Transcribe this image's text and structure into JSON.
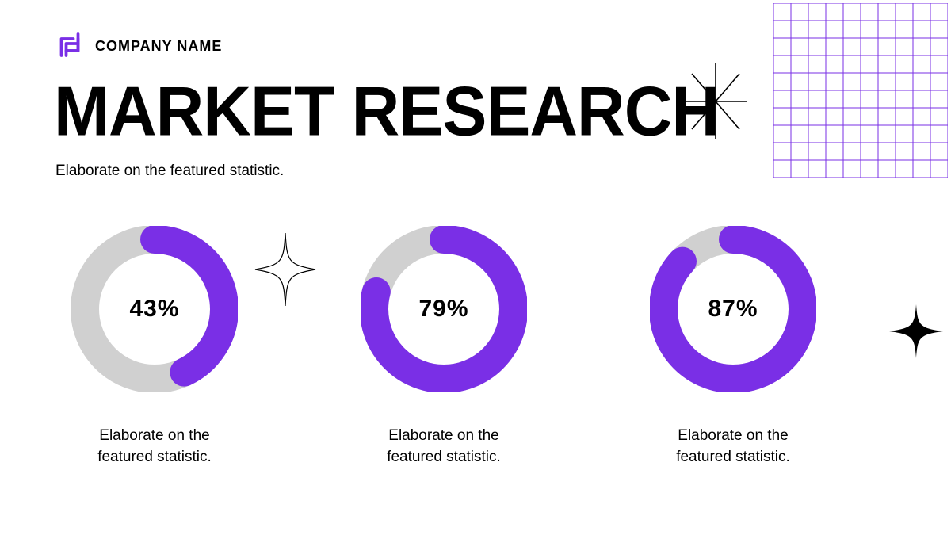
{
  "header": {
    "company_name": "COMPANY NAME",
    "logo_color": "#7a2fe6"
  },
  "title": "MARKET RESEARCH",
  "subtitle": "Elaborate on the featured statistic.",
  "grid": {
    "color": "#7a2fe6",
    "cols": 10,
    "rows": 10,
    "cell": 22
  },
  "decor": {
    "star1_color": "#000000",
    "star2_color": "#000000",
    "star3_color": "#000000"
  },
  "charts": {
    "type": "donut",
    "ring_thickness": 36,
    "radius": 88,
    "track_color": "#d0d0d0",
    "fill_color": "#7a2fe6",
    "background_color": "#ffffff",
    "label_fontsize": 30,
    "caption_fontsize": 19,
    "start_angle_deg": 0,
    "items": [
      {
        "value": 43,
        "label": "43%",
        "caption_line1": "Elaborate on the",
        "caption_line2": "featured statistic."
      },
      {
        "value": 79,
        "label": "79%",
        "caption_line1": "Elaborate on the",
        "caption_line2": "featured statistic."
      },
      {
        "value": 87,
        "label": "87%",
        "caption_line1": "Elaborate on the",
        "caption_line2": "featured statistic."
      }
    ]
  }
}
